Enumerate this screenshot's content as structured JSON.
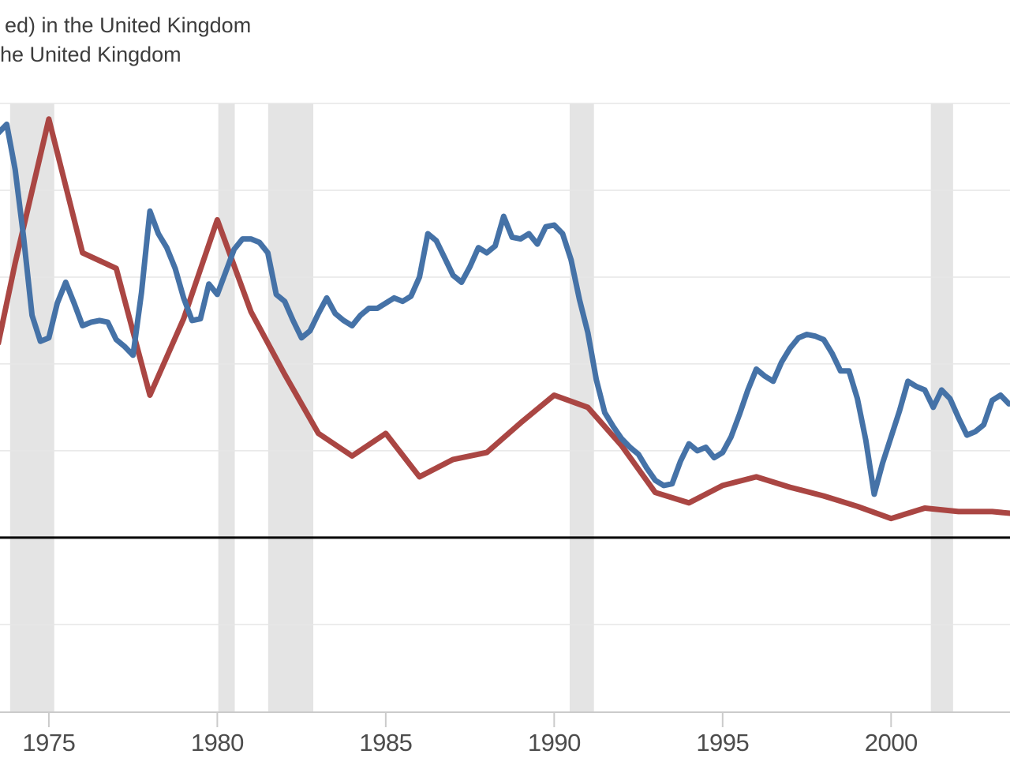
{
  "legend": {
    "line1": "ed) in the United Kingdom",
    "line2": "he United Kingdom"
  },
  "chart_data": {
    "type": "line",
    "title": "FRED-style time series chart, cropped at left; legend fragments: 'ed) in the United Kingdom' / 'he United Kingdom'",
    "xlabel": "",
    "ylabel": "",
    "grid": true,
    "xlim": [
      1973.55,
      2003.53
    ],
    "ylim": [
      -10.1,
      25
    ],
    "x_ticks": [
      1975,
      1980,
      1985,
      1990,
      1995,
      2000
    ],
    "x_tick_labels": [
      "1975",
      "1980",
      "1985",
      "1990",
      "1995",
      "2000"
    ],
    "gridline_values": [
      25,
      20,
      15,
      10,
      5,
      -5
    ],
    "zero_line_value": 0,
    "recession_bands": [
      [
        1973.85,
        1975.16
      ],
      [
        1980.03,
        1980.52
      ],
      [
        1981.51,
        1982.85
      ],
      [
        1990.46,
        1991.18
      ],
      [
        2001.18,
        2001.84
      ]
    ],
    "colors": {
      "blue_series": "#4572a7",
      "red_series": "#aa4643",
      "recession_band": "#e4e4e4",
      "gridline": "#e6e6e6",
      "zero_line": "#000000",
      "axis_line": "#cbcbcb",
      "tick_label": "#4c4c4c",
      "legend_text": "#3d3d3d",
      "background": "#ffffff"
    },
    "series": [
      {
        "name": "red-annual-series",
        "color": "#aa4643",
        "points": [
          [
            1973.5,
            11.2
          ],
          [
            1974,
            15.8
          ],
          [
            1975,
            24.1
          ],
          [
            1976,
            16.4
          ],
          [
            1977,
            15.5
          ],
          [
            1978,
            8.2
          ],
          [
            1979,
            12.6
          ],
          [
            1980,
            18.3
          ],
          [
            1981,
            13.0
          ],
          [
            1982,
            9.4
          ],
          [
            1983,
            6.0
          ],
          [
            1984,
            4.7
          ],
          [
            1985,
            6.0
          ],
          [
            1986,
            3.5
          ],
          [
            1987,
            4.5
          ],
          [
            1988,
            4.9
          ],
          [
            1989,
            6.6
          ],
          [
            1990,
            8.2
          ],
          [
            1991,
            7.5
          ],
          [
            1992,
            5.3
          ],
          [
            1993,
            2.6
          ],
          [
            1994,
            2.0
          ],
          [
            1995,
            3.0
          ],
          [
            1996,
            3.5
          ],
          [
            1997,
            2.9
          ],
          [
            1998,
            2.4
          ],
          [
            1999,
            1.8
          ],
          [
            2000,
            1.1
          ],
          [
            2001,
            1.7
          ],
          [
            2002,
            1.5
          ],
          [
            2003,
            1.5
          ],
          [
            2003.55,
            1.4
          ]
        ]
      },
      {
        "name": "blue-quarterly-series",
        "color": "#4572a7",
        "points": [
          [
            1973.5,
            23.3
          ],
          [
            1973.75,
            23.8
          ],
          [
            1974,
            21.2
          ],
          [
            1974.25,
            17.3
          ],
          [
            1974.5,
            12.8
          ],
          [
            1974.75,
            11.3
          ],
          [
            1975,
            11.5
          ],
          [
            1975.25,
            13.5
          ],
          [
            1975.5,
            14.7
          ],
          [
            1975.75,
            13.5
          ],
          [
            1976,
            12.2
          ],
          [
            1976.25,
            12.4
          ],
          [
            1976.5,
            12.5
          ],
          [
            1976.75,
            12.4
          ],
          [
            1977,
            11.4
          ],
          [
            1977.25,
            11.0
          ],
          [
            1977.5,
            10.5
          ],
          [
            1977.75,
            14.1
          ],
          [
            1978,
            18.8
          ],
          [
            1978.25,
            17.5
          ],
          [
            1978.5,
            16.7
          ],
          [
            1978.75,
            15.5
          ],
          [
            1979,
            13.8
          ],
          [
            1979.25,
            12.5
          ],
          [
            1979.5,
            12.6
          ],
          [
            1979.75,
            14.6
          ],
          [
            1980,
            14.0
          ],
          [
            1980.25,
            15.3
          ],
          [
            1980.5,
            16.6
          ],
          [
            1980.75,
            17.2
          ],
          [
            1981,
            17.2
          ],
          [
            1981.25,
            17.0
          ],
          [
            1981.5,
            16.4
          ],
          [
            1981.75,
            14.0
          ],
          [
            1982,
            13.6
          ],
          [
            1982.25,
            12.5
          ],
          [
            1982.5,
            11.5
          ],
          [
            1982.75,
            11.9
          ],
          [
            1983,
            12.9
          ],
          [
            1983.25,
            13.8
          ],
          [
            1983.5,
            12.9
          ],
          [
            1983.75,
            12.5
          ],
          [
            1984,
            12.2
          ],
          [
            1984.25,
            12.8
          ],
          [
            1984.5,
            13.2
          ],
          [
            1984.75,
            13.2
          ],
          [
            1985,
            13.5
          ],
          [
            1985.25,
            13.8
          ],
          [
            1985.5,
            13.6
          ],
          [
            1985.75,
            13.9
          ],
          [
            1986,
            15.0
          ],
          [
            1986.25,
            17.5
          ],
          [
            1986.5,
            17.1
          ],
          [
            1986.75,
            16.1
          ],
          [
            1987,
            15.1
          ],
          [
            1987.25,
            14.7
          ],
          [
            1987.5,
            15.6
          ],
          [
            1987.75,
            16.7
          ],
          [
            1988,
            16.4
          ],
          [
            1988.25,
            16.8
          ],
          [
            1988.5,
            18.5
          ],
          [
            1988.75,
            17.3
          ],
          [
            1989,
            17.2
          ],
          [
            1989.25,
            17.5
          ],
          [
            1989.5,
            16.9
          ],
          [
            1989.75,
            17.9
          ],
          [
            1990,
            18.0
          ],
          [
            1990.25,
            17.5
          ],
          [
            1990.5,
            16.0
          ],
          [
            1990.75,
            13.7
          ],
          [
            1991,
            11.8
          ],
          [
            1991.25,
            9.1
          ],
          [
            1991.5,
            7.2
          ],
          [
            1991.75,
            6.4
          ],
          [
            1992,
            5.7
          ],
          [
            1992.25,
            5.2
          ],
          [
            1992.5,
            4.8
          ],
          [
            1992.75,
            4.0
          ],
          [
            1993,
            3.3
          ],
          [
            1993.25,
            3.0
          ],
          [
            1993.5,
            3.1
          ],
          [
            1993.75,
            4.4
          ],
          [
            1994,
            5.4
          ],
          [
            1994.25,
            5.0
          ],
          [
            1994.5,
            5.2
          ],
          [
            1994.75,
            4.6
          ],
          [
            1995,
            4.9
          ],
          [
            1995.25,
            5.8
          ],
          [
            1995.5,
            7.1
          ],
          [
            1995.75,
            8.5
          ],
          [
            1996,
            9.7
          ],
          [
            1996.25,
            9.3
          ],
          [
            1996.5,
            9.0
          ],
          [
            1996.75,
            10.1
          ],
          [
            1997,
            10.9
          ],
          [
            1997.25,
            11.5
          ],
          [
            1997.5,
            11.7
          ],
          [
            1997.75,
            11.6
          ],
          [
            1998,
            11.4
          ],
          [
            1998.25,
            10.6
          ],
          [
            1998.5,
            9.6
          ],
          [
            1998.75,
            9.6
          ],
          [
            1999,
            8.0
          ],
          [
            1999.25,
            5.6
          ],
          [
            1999.5,
            2.5
          ],
          [
            1999.75,
            4.3
          ],
          [
            2000,
            5.8
          ],
          [
            2000.25,
            7.3
          ],
          [
            2000.5,
            9.0
          ],
          [
            2000.75,
            8.7
          ],
          [
            2001,
            8.5
          ],
          [
            2001.25,
            7.5
          ],
          [
            2001.5,
            8.5
          ],
          [
            2001.75,
            8.0
          ],
          [
            2002,
            6.9
          ],
          [
            2002.25,
            5.9
          ],
          [
            2002.5,
            6.1
          ],
          [
            2002.75,
            6.5
          ],
          [
            2003,
            7.9
          ],
          [
            2003.25,
            8.2
          ],
          [
            2003.5,
            7.7
          ]
        ]
      }
    ],
    "legend_position": "top-left (text cropped by left edge)"
  }
}
